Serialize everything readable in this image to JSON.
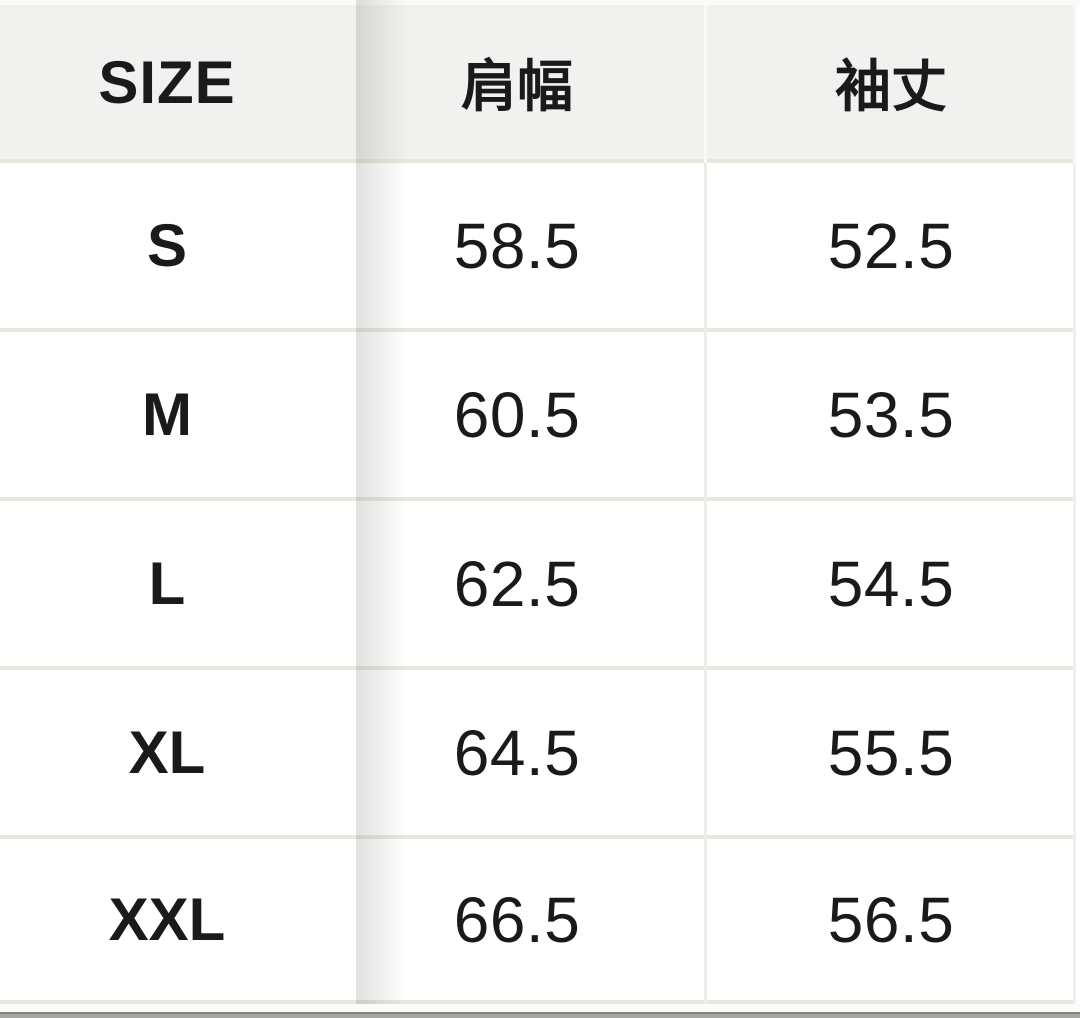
{
  "size_chart": {
    "columns": [
      {
        "id": "size",
        "label": "SIZE"
      },
      {
        "id": "shoulder_width",
        "label": "肩幅"
      },
      {
        "id": "sleeve_length",
        "label": "袖丈"
      }
    ],
    "rows": [
      {
        "size": "S",
        "shoulder_width": "58.5",
        "sleeve_length": "52.5"
      },
      {
        "size": "M",
        "shoulder_width": "60.5",
        "sleeve_length": "53.5"
      },
      {
        "size": "L",
        "shoulder_width": "62.5",
        "sleeve_length": "54.5"
      },
      {
        "size": "XL",
        "shoulder_width": "64.5",
        "sleeve_length": "55.5"
      },
      {
        "size": "XXL",
        "shoulder_width": "66.5",
        "sleeve_length": "56.5"
      }
    ]
  },
  "chart_data": {
    "type": "table",
    "title": "",
    "columns": [
      "SIZE",
      "肩幅",
      "袖丈"
    ],
    "rows": [
      [
        "S",
        58.5,
        52.5
      ],
      [
        "M",
        60.5,
        53.5
      ],
      [
        "L",
        62.5,
        54.5
      ],
      [
        "XL",
        64.5,
        55.5
      ],
      [
        "XXL",
        66.5,
        56.5
      ]
    ]
  },
  "colors": {
    "header_bg": "#f1f1ef",
    "row_bg": "#ffffff",
    "separator": "#e8e8e1",
    "text": "#1a1a1a",
    "scroll_shadow": "rgba(70,70,64,0.16)",
    "bottom_bar": "#a5a5a3"
  }
}
